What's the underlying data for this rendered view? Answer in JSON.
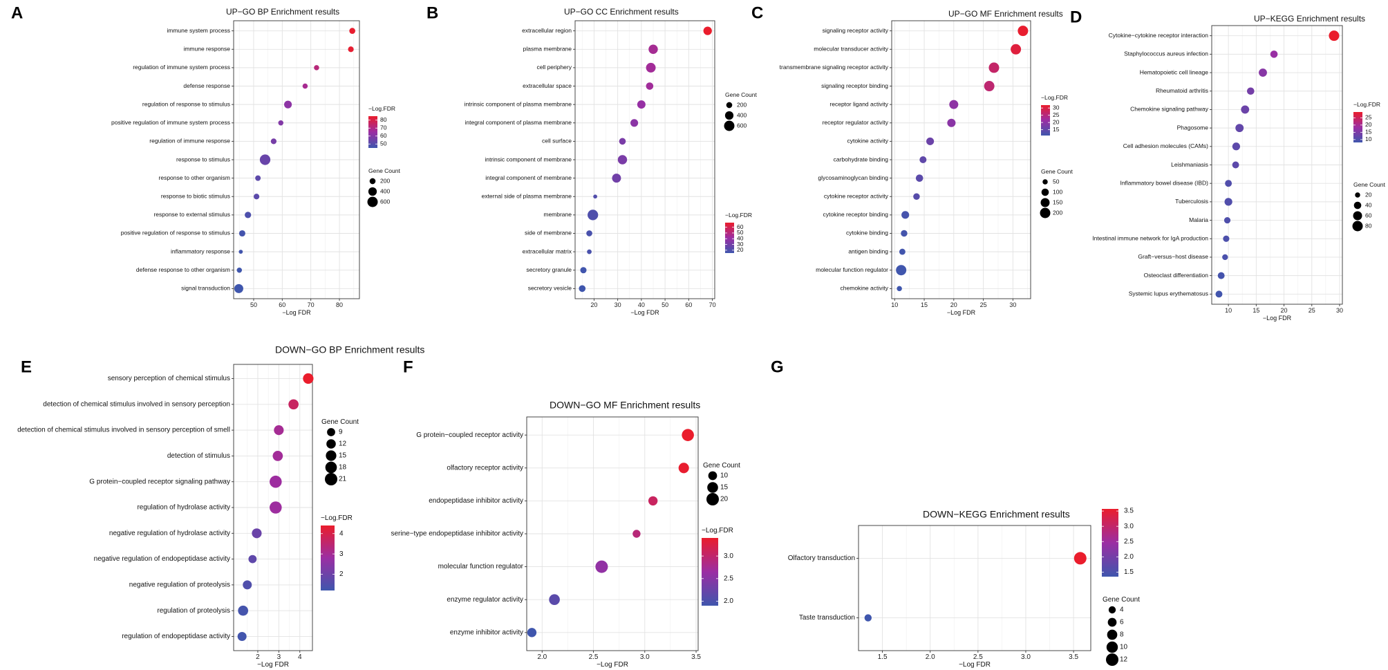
{
  "figure_labels": [
    "A",
    "B",
    "C",
    "D",
    "E",
    "F",
    "G"
  ],
  "colors": {
    "low": "#3f56ad",
    "mid": "#9b2ea3",
    "high": "#ea1d2c"
  },
  "chart_data": [
    {
      "id": "A",
      "type": "scatter",
      "title": "UP−GO BP Enrichment results",
      "xlabel": "−Log FDR",
      "xlim": [
        43,
        87
      ],
      "xticks": [
        50,
        60,
        70,
        80
      ],
      "categories": [
        "immune system process",
        "immune response",
        "regulation of immune system process",
        "defense response",
        "regulation of response to stimulus",
        "positive regulation of immune system process",
        "regulation of immune response",
        "response to stimulus",
        "response to other organism",
        "response to biotic stimulus",
        "response to external stimulus",
        "positive regulation of response to stimulus",
        "inflammatory response",
        "defense response to other organism",
        "signal transduction"
      ],
      "values": [
        84.5,
        84,
        72,
        68,
        62,
        59.5,
        57,
        54,
        51.5,
        51,
        48,
        46,
        45.5,
        45,
        44.8
      ],
      "counts": [
        200,
        180,
        150,
        150,
        330,
        150,
        180,
        620,
        170,
        180,
        230,
        220,
        90,
        150,
        450
      ],
      "color_legend": {
        "title": "−Log.FDR",
        "ticks": [
          50,
          60,
          70,
          80
        ],
        "min": 45,
        "max": 85
      },
      "size_legend": {
        "title": "Gene Count",
        "ticks": [
          200,
          400,
          600
        ]
      }
    },
    {
      "id": "B",
      "type": "scatter",
      "title": "UP−GO CC Enrichment results",
      "xlabel": "−Log FDR",
      "xlim": [
        12,
        71
      ],
      "xticks": [
        20,
        30,
        40,
        50,
        60,
        70
      ],
      "categories": [
        "extracellular region",
        "plasma membrane",
        "cell periphery",
        "extracellular space",
        "intrinsic component of plasma membrane",
        "integral component of plasma membrane",
        "cell surface",
        "intrinsic component of membrane",
        "integral component of membrane",
        "external side of plasma membrane",
        "membrane",
        "side of membrane",
        "extracellular matrix",
        "secretory granule",
        "secretory vesicle"
      ],
      "values": [
        68,
        45,
        44,
        43.5,
        40,
        37,
        32,
        32,
        29.5,
        20.5,
        19.5,
        18,
        18,
        15.5,
        15
      ],
      "counts": [
        400,
        480,
        520,
        300,
        380,
        330,
        250,
        480,
        450,
        90,
        620,
        200,
        120,
        220,
        250
      ],
      "color_legend": {
        "title": "−Log.FDR",
        "ticks": [
          20,
          30,
          40,
          50,
          60
        ],
        "min": 15,
        "max": 68
      },
      "size_legend": {
        "title": "Gene Count",
        "ticks": [
          200,
          400,
          600
        ]
      }
    },
    {
      "id": "C",
      "type": "scatter",
      "title": "UP−GO MF Enrichment results",
      "xlabel": "−Log FDR",
      "xlim": [
        9.5,
        33
      ],
      "xticks": [
        10,
        15,
        20,
        25,
        30
      ],
      "categories": [
        "signaling receptor activity",
        "molecular transducer activity",
        "transmembrane signaling receptor activity",
        "signaling receptor binding",
        "receptor ligand activity",
        "receptor regulator activity",
        "cytokine activity",
        "carbohydrate binding",
        "glycosaminoglycan binding",
        "cytokine receptor activity",
        "cytokine receptor binding",
        "cytokine binding",
        "antigen binding",
        "molecular function regulator",
        "chemokine activity"
      ],
      "values": [
        31.7,
        30.5,
        26.8,
        26,
        20,
        19.6,
        16,
        14.8,
        14.2,
        13.7,
        11.8,
        11.6,
        11.3,
        11.1,
        10.8
      ],
      "counts": [
        200,
        200,
        200,
        200,
        150,
        130,
        110,
        90,
        100,
        80,
        110,
        80,
        70,
        200,
        50
      ],
      "color_legend": {
        "title": "−Log.FDR",
        "ticks": [
          15,
          20,
          25,
          30
        ],
        "min": 11,
        "max": 32
      },
      "size_legend": {
        "title": "Gene Count",
        "ticks": [
          50,
          100,
          150,
          200
        ]
      }
    },
    {
      "id": "D",
      "type": "scatter",
      "title": "UP−KEGG Enrichment results",
      "xlabel": "−Log FDR",
      "xlim": [
        7,
        30.5
      ],
      "xticks": [
        10,
        15,
        20,
        25,
        30
      ],
      "categories": [
        "Cytokine−cytokine receptor interaction",
        "Staphylococcus aureus infection",
        "Hematopoietic cell lineage",
        "Rheumatoid arthritis",
        "Chemokine signaling pathway",
        "Phagosome",
        "Cell adhesion molecules (CAMs)",
        "Leishmaniasis",
        "Inflammatory bowel disease (IBD)",
        "Tuberculosis",
        "Malaria",
        "Intestinal immune network for IgA production",
        "Graft−versus−host disease",
        "Osteoclast differentiation",
        "Systemic lupus erythematosus"
      ],
      "values": [
        29,
        18.2,
        16.2,
        14,
        13,
        12,
        11.4,
        11.3,
        10,
        10,
        9.8,
        9.6,
        9.4,
        8.7,
        8.3
      ],
      "counts": [
        80,
        40,
        50,
        40,
        50,
        50,
        45,
        35,
        35,
        45,
        30,
        30,
        25,
        35,
        35
      ],
      "color_legend": {
        "title": "−Log.FDR",
        "ticks": [
          10,
          15,
          20,
          25
        ],
        "min": 8,
        "max": 29
      },
      "size_legend": {
        "title": "Gene Count",
        "ticks": [
          20,
          40,
          60,
          80
        ]
      }
    },
    {
      "id": "E",
      "type": "scatter",
      "title": "DOWN−GO BP Enrichment results",
      "xlabel": "−Log FDR",
      "xlim": [
        0.85,
        4.6
      ],
      "xticks": [
        2,
        3,
        4
      ],
      "categories": [
        "sensory perception of chemical stimulus",
        "detection of chemical stimulus involved in sensory perception",
        "detection of chemical stimulus involved in sensory perception of smell",
        "detection of stimulus",
        "G protein−coupled receptor signaling pathway",
        "regulation of hydrolase activity",
        "negative regulation of hydrolase activity",
        "negative regulation of endopeptidase activity",
        "negative regulation of proteolysis",
        "regulation of proteolysis",
        "regulation of endopeptidase activity"
      ],
      "values": [
        4.4,
        3.7,
        3.0,
        2.95,
        2.85,
        2.85,
        1.95,
        1.75,
        1.5,
        1.3,
        1.25
      ],
      "counts": [
        15,
        14,
        13,
        14,
        20,
        20,
        13,
        9,
        11,
        14,
        11
      ],
      "color_legend": {
        "title": "−Log.FDR",
        "ticks": [
          2,
          3,
          4
        ],
        "min": 1.2,
        "max": 4.4
      },
      "size_legend": {
        "title": "Gene Count",
        "ticks": [
          9,
          12,
          15,
          18,
          21
        ]
      }
    },
    {
      "id": "F",
      "type": "scatter",
      "title": "DOWN−GO MF Enrichment results",
      "xlabel": "−Log FDR",
      "xlim": [
        1.85,
        3.52
      ],
      "xticks": [
        2.0,
        2.5,
        3.0,
        3.5
      ],
      "categories": [
        "G protein−coupled receptor activity",
        "olfactory receptor activity",
        "endopeptidase inhibitor activity",
        "serine−type endopeptidase inhibitor activity",
        "molecular function regulator",
        "enzyme regulator activity",
        "enzyme inhibitor activity"
      ],
      "values": [
        3.42,
        3.38,
        3.08,
        2.92,
        2.58,
        2.12,
        1.9
      ],
      "counts": [
        19,
        14,
        11,
        8,
        20,
        15,
        11
      ],
      "color_legend": {
        "title": "−Log.FDR",
        "ticks": [
          2.0,
          2.5,
          3.0
        ],
        "min": 1.9,
        "max": 3.4
      },
      "size_legend": {
        "title": "Gene Count",
        "ticks": [
          10,
          15,
          20
        ]
      }
    },
    {
      "id": "G",
      "type": "scatter",
      "title": "DOWN−KEGG Enrichment results",
      "xlabel": "−Log FDR",
      "xlim": [
        1.25,
        3.68
      ],
      "xticks": [
        1.5,
        2.0,
        2.5,
        3.0,
        3.5
      ],
      "categories": [
        "Olfactory transduction",
        "Taste transduction"
      ],
      "values": [
        3.57,
        1.35
      ],
      "counts": [
        12,
        4
      ],
      "color_legend": {
        "title": "",
        "ticks": [
          1.5,
          2.0,
          2.5,
          3.0,
          3.5
        ],
        "min": 1.35,
        "max": 3.57
      },
      "size_legend": {
        "title": "Gene Count",
        "ticks": [
          4,
          6,
          8,
          10,
          12
        ]
      }
    }
  ]
}
